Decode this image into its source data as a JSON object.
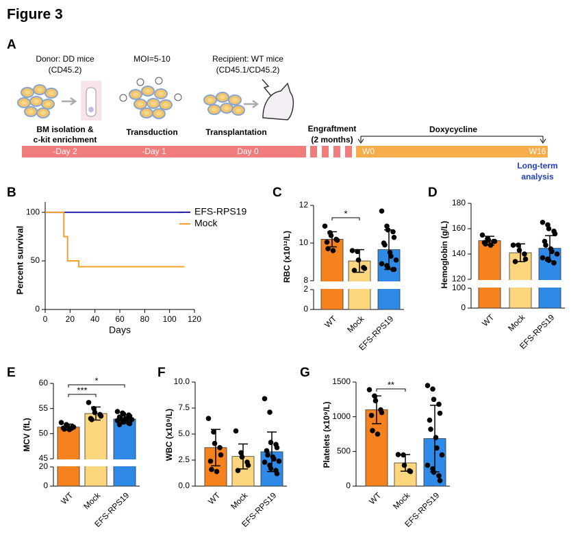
{
  "figure_title": "Figure 3",
  "panel_a": {
    "panel": "A",
    "donor": "Donor: DD mice",
    "donor_marker": "(CD45.2)",
    "moi": "MOI=5-10",
    "recipient": "Recipient: WT mice",
    "recipient_marker": "(CD45.1/CD45.2)",
    "step1_line1": "BM isolation &",
    "step1_line2": "c-kit enrichment",
    "step2": "Transduction",
    "step3": "Transplantation",
    "engraftment": "Engraftment",
    "engraftment_time": "(2 months)",
    "doxycycline": "Doxycycline",
    "day_m2": "-Day 2",
    "day_m1": "-Day 1",
    "day_0": "Day 0",
    "w0": "W0",
    "w16": "W16",
    "analysis_line1": "Long-term",
    "analysis_line2": "analysis"
  },
  "chart_data": [
    {
      "type": "line",
      "panel": "B",
      "x_label": "Days",
      "y_label": "Percent survival",
      "xlim": [
        0,
        120
      ],
      "xticks": [
        0,
        20,
        40,
        60,
        80,
        100,
        120
      ],
      "ylim": [
        0,
        105
      ],
      "yticks": [
        0,
        50,
        100
      ],
      "series": [
        {
          "name": "EFS-RPS19",
          "color": "#2424a8",
          "x": [
            0,
            112
          ],
          "values": [
            100,
            100
          ]
        },
        {
          "name": "Mock",
          "color": "#f5a02a",
          "x": [
            0,
            15,
            15,
            18,
            18,
            27,
            27,
            112
          ],
          "values": [
            100,
            100,
            75,
            75,
            50,
            50,
            44,
            44
          ]
        }
      ]
    },
    {
      "type": "bar",
      "panel": "C",
      "y_label": "RBC (x10¹²/L)",
      "categories": [
        "WT",
        "Mock",
        "EFS-RPS19"
      ],
      "colors": [
        "#f5821f",
        "#fdd67e",
        "#2e8ae6"
      ],
      "values": [
        10.2,
        9.05,
        9.65
      ],
      "errors": [
        0.4,
        0.6,
        1.05
      ],
      "points": [
        [
          10.9,
          10.55,
          10.4,
          10.2,
          10.15,
          10.05,
          9.7,
          9.6
        ],
        [
          9.6,
          9.55,
          9.1,
          8.7,
          8.65,
          8.55
        ],
        [
          11.7,
          10.9,
          10.7,
          10.6,
          10.3,
          10.0,
          9.9,
          9.5,
          9.3,
          9.1,
          8.9,
          8.8,
          8.7,
          8.6,
          8.6
        ]
      ],
      "ylim": [
        0,
        12
      ],
      "axis_break": [
        2,
        8
      ],
      "yticks": [
        0,
        2,
        8,
        10,
        12
      ],
      "significance": [
        {
          "between": [
            "WT",
            "Mock"
          ],
          "label": "*"
        }
      ]
    },
    {
      "type": "bar",
      "panel": "D",
      "y_label": "Hemoglobin (g/L)",
      "categories": [
        "WT",
        "Mock",
        "EFS-RPS19"
      ],
      "colors": [
        "#f5821f",
        "#fdd67e",
        "#2e8ae6"
      ],
      "values": [
        150.5,
        141,
        144.5
      ],
      "errors": [
        3.5,
        7,
        10
      ],
      "points": [
        [
          155,
          152,
          151,
          150,
          150,
          149,
          148,
          147
        ],
        [
          147,
          147,
          143,
          140,
          136,
          134
        ],
        [
          165,
          163,
          160,
          158,
          156,
          150,
          147,
          144,
          142,
          140,
          137,
          136,
          135,
          133
        ]
      ],
      "ylim": [
        0,
        180
      ],
      "axis_break": [
        100,
        120
      ],
      "yticks": [
        0,
        100,
        120,
        140,
        160,
        180
      ],
      "significance": []
    },
    {
      "type": "bar",
      "panel": "E",
      "y_label": "MCV (fL)",
      "categories": [
        "WT",
        "Mock",
        "EFS-RPS19"
      ],
      "colors": [
        "#f5821f",
        "#fdd67e",
        "#2e8ae6"
      ],
      "values": [
        51.3,
        54,
        52.9
      ],
      "errors": [
        0.6,
        1.3,
        0.8
      ],
      "points": [
        [
          52.2,
          51.8,
          51.6,
          51.4,
          51.3,
          51.1,
          50.9,
          50.8
        ],
        [
          56.2,
          55,
          54.2,
          53.8,
          53.5,
          53,
          52.8
        ],
        [
          54.4,
          54.1,
          53.9,
          53.7,
          53.5,
          53.3,
          53.1,
          53,
          52.9,
          52.8,
          52.6,
          52.5,
          52.3,
          52.1,
          52,
          51.8
        ]
      ],
      "ylim": [
        0,
        60
      ],
      "axis_break": [
        20,
        45
      ],
      "yticks": [
        0,
        20,
        45,
        50,
        55,
        60
      ],
      "significance": [
        {
          "between": [
            "WT",
            "Mock"
          ],
          "label": "***"
        },
        {
          "between": [
            "WT",
            "EFS-RPS19"
          ],
          "label": "*"
        }
      ]
    },
    {
      "type": "bar",
      "panel": "F",
      "y_label": "WBC (x10⁹/L)",
      "categories": [
        "WT",
        "Mock",
        "EFS-RPS19"
      ],
      "colors": [
        "#f5821f",
        "#fdd67e",
        "#2e8ae6"
      ],
      "values": [
        3.7,
        2.85,
        3.3
      ],
      "errors": [
        1.75,
        1.2,
        1.9
      ],
      "points": [
        [
          6.5,
          5.2,
          4.1,
          3.7,
          3,
          2.4,
          1.6,
          1.4
        ],
        [
          5.3,
          3.2,
          2.8,
          2.3,
          2,
          1.5
        ],
        [
          8.4,
          7.1,
          4.2,
          4,
          3.7,
          3.4,
          3,
          2.8,
          2.6,
          2.4,
          2.3,
          2,
          1.7,
          1.5,
          1.2
        ]
      ],
      "ylim": [
        0,
        10
      ],
      "yticks": [
        {
          "value": 0,
          "label": "0.0"
        },
        {
          "value": 2.5,
          "label": "2.5"
        },
        {
          "value": 5,
          "label": "5.0"
        },
        {
          "value": 7.5,
          "label": "7.5"
        },
        {
          "value": 10,
          "label": "10.0"
        }
      ],
      "significance": []
    },
    {
      "type": "bar",
      "panel": "G",
      "y_label": "Platelets (x10⁹/L)",
      "categories": [
        "WT",
        "Mock",
        "EFS-RPS19"
      ],
      "colors": [
        "#f5821f",
        "#fdd67e",
        "#2e8ae6"
      ],
      "values": [
        1100,
        335,
        685
      ],
      "errors": [
        200,
        120,
        480
      ],
      "points": [
        [
          1390,
          1300,
          1230,
          1100,
          1060,
          1020,
          800,
          750
        ],
        [
          455,
          450,
          300,
          220,
          210
        ],
        [
          1450,
          1400,
          1250,
          1180,
          1050,
          950,
          820,
          700,
          550,
          450,
          300,
          250,
          200,
          150,
          80
        ]
      ],
      "ylim": [
        0,
        1500
      ],
      "yticks": [
        0,
        500,
        1000,
        1500
      ],
      "significance": [
        {
          "between": [
            "WT",
            "Mock"
          ],
          "label": "**"
        }
      ]
    }
  ]
}
